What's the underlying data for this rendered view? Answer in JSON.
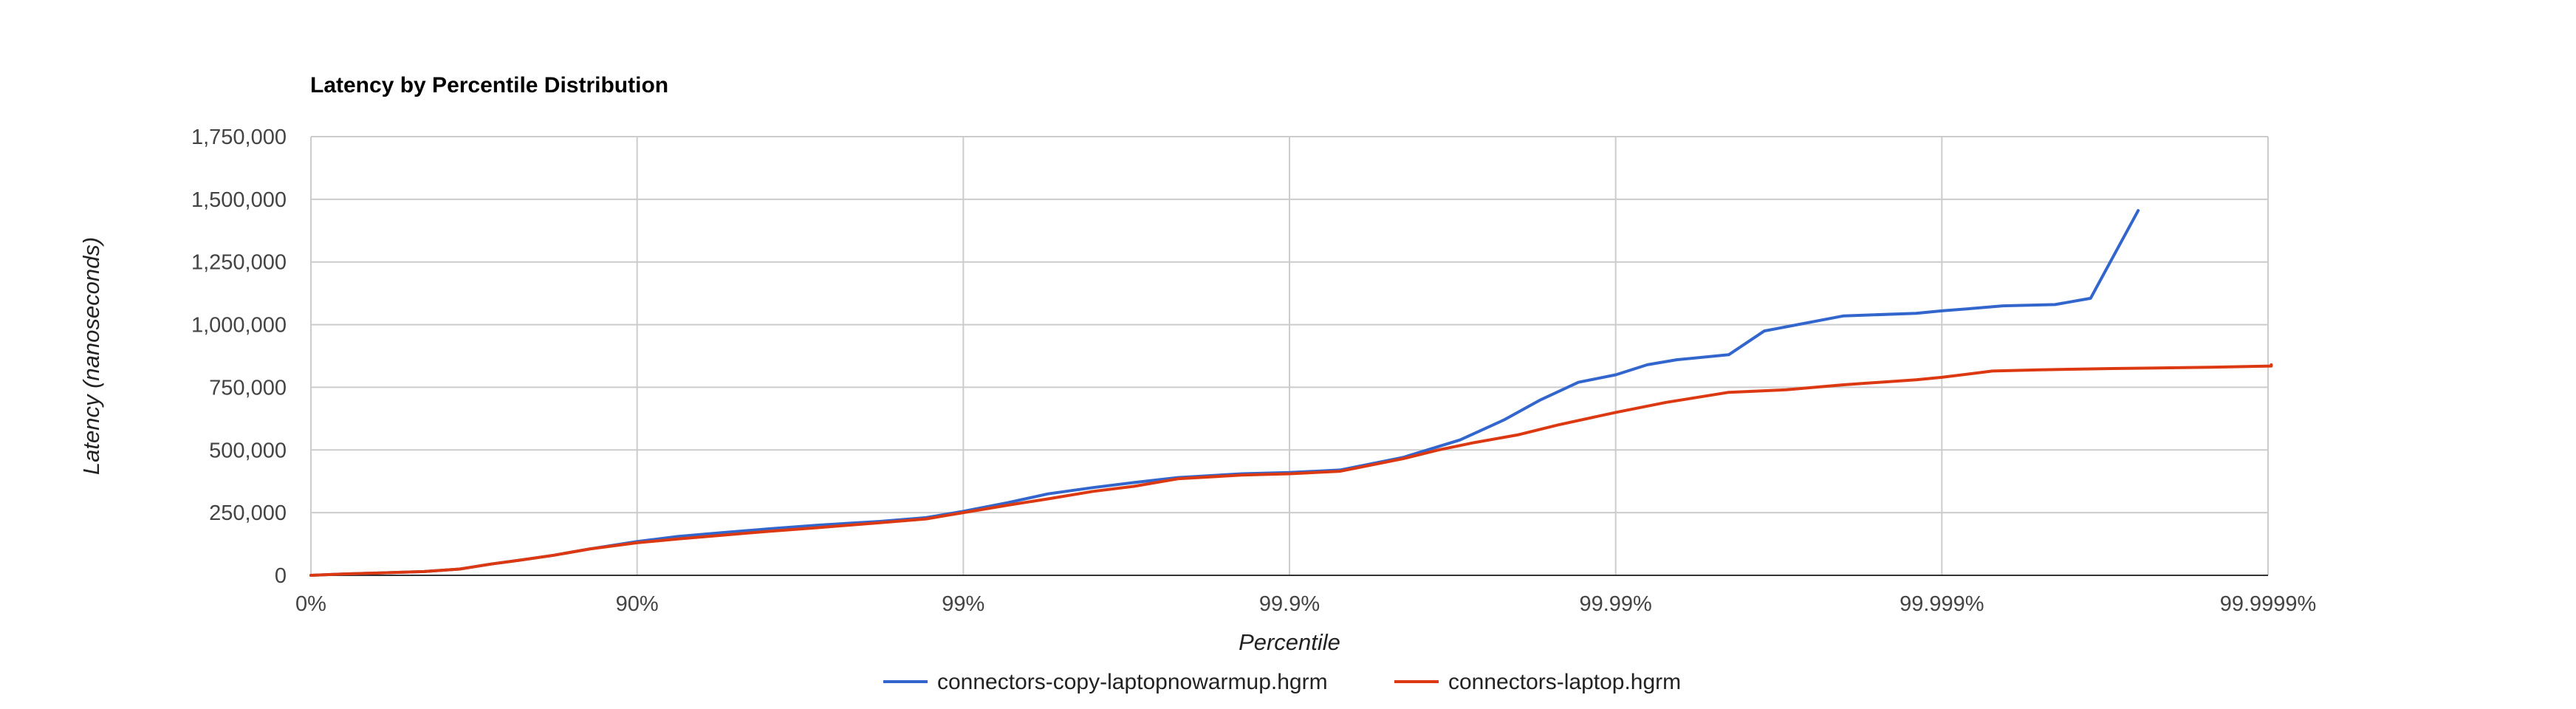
{
  "chart_data": {
    "type": "line",
    "title": "Latency by Percentile Distribution",
    "xlabel": "Percentile",
    "ylabel": "Latency (nanoseconds)",
    "x_scale": "percentile-nines",
    "x_tick_labels": [
      "0%",
      "90%",
      "99%",
      "99.9%",
      "99.99%",
      "99.999%",
      "99.9999%"
    ],
    "y_tick_labels": [
      "0",
      "250,000",
      "500,000",
      "750,000",
      "1,000,000",
      "1,250,000",
      "1,500,000",
      "1,750,000"
    ],
    "ylim": [
      0,
      1750000
    ],
    "grid": true,
    "legend_position": "bottom",
    "series": [
      {
        "name": "connectors-copy-laptopnowarmup.hgrm",
        "color": "#3366cc",
        "points": [
          [
            0,
            0
          ],
          [
            20,
            5000
          ],
          [
            40,
            10000
          ],
          [
            55,
            15000
          ],
          [
            65,
            25000
          ],
          [
            72,
            45000
          ],
          [
            77,
            60000
          ],
          [
            82,
            80000
          ],
          [
            86,
            105000
          ],
          [
            90,
            135000
          ],
          [
            92.5,
            155000
          ],
          [
            94.5,
            170000
          ],
          [
            96,
            185000
          ],
          [
            97.2,
            200000
          ],
          [
            98.2,
            215000
          ],
          [
            98.7,
            230000
          ],
          [
            99,
            255000
          ],
          [
            99.27,
            290000
          ],
          [
            99.45,
            325000
          ],
          [
            99.6,
            350000
          ],
          [
            99.7,
            370000
          ],
          [
            99.78,
            390000
          ],
          [
            99.86,
            405000
          ],
          [
            99.9,
            410000
          ],
          [
            99.93,
            420000
          ],
          [
            99.955,
            470000
          ],
          [
            99.97,
            540000
          ],
          [
            99.978,
            620000
          ],
          [
            99.983,
            700000
          ],
          [
            99.987,
            770000
          ],
          [
            99.99,
            800000
          ],
          [
            99.992,
            840000
          ],
          [
            99.9935,
            860000
          ],
          [
            99.9955,
            880000
          ],
          [
            99.9965,
            975000
          ],
          [
            99.998,
            1035000
          ],
          [
            99.9988,
            1045000
          ],
          [
            99.999,
            1055000
          ],
          [
            99.9992,
            1065000
          ],
          [
            99.99935,
            1075000
          ],
          [
            99.99955,
            1080000
          ],
          [
            99.99965,
            1105000
          ],
          [
            99.99975,
            1455000
          ]
        ]
      },
      {
        "name": "connectors-laptop.hgrm",
        "color": "#dc3912",
        "points": [
          [
            0,
            0
          ],
          [
            20,
            5000
          ],
          [
            40,
            10000
          ],
          [
            55,
            15000
          ],
          [
            65,
            25000
          ],
          [
            72,
            45000
          ],
          [
            77,
            60000
          ],
          [
            82,
            80000
          ],
          [
            86,
            105000
          ],
          [
            90,
            130000
          ],
          [
            92.5,
            145000
          ],
          [
            94.5,
            160000
          ],
          [
            96,
            175000
          ],
          [
            97.2,
            190000
          ],
          [
            98.2,
            210000
          ],
          [
            98.7,
            225000
          ],
          [
            99,
            250000
          ],
          [
            99.27,
            280000
          ],
          [
            99.45,
            305000
          ],
          [
            99.6,
            335000
          ],
          [
            99.7,
            355000
          ],
          [
            99.78,
            385000
          ],
          [
            99.86,
            400000
          ],
          [
            99.9,
            405000
          ],
          [
            99.93,
            415000
          ],
          [
            99.955,
            465000
          ],
          [
            99.965,
            500000
          ],
          [
            99.973,
            530000
          ],
          [
            99.98,
            560000
          ],
          [
            99.985,
            600000
          ],
          [
            99.99,
            650000
          ],
          [
            99.993,
            690000
          ],
          [
            99.9955,
            730000
          ],
          [
            99.997,
            740000
          ],
          [
            99.998,
            760000
          ],
          [
            99.9988,
            780000
          ],
          [
            99.999,
            790000
          ],
          [
            99.9993,
            815000
          ],
          [
            99.9995,
            820000
          ],
          [
            99.9997,
            825000
          ],
          [
            99.99985,
            830000
          ],
          [
            99.99993,
            835000
          ],
          [
            99.999998,
            840000
          ]
        ]
      }
    ]
  }
}
